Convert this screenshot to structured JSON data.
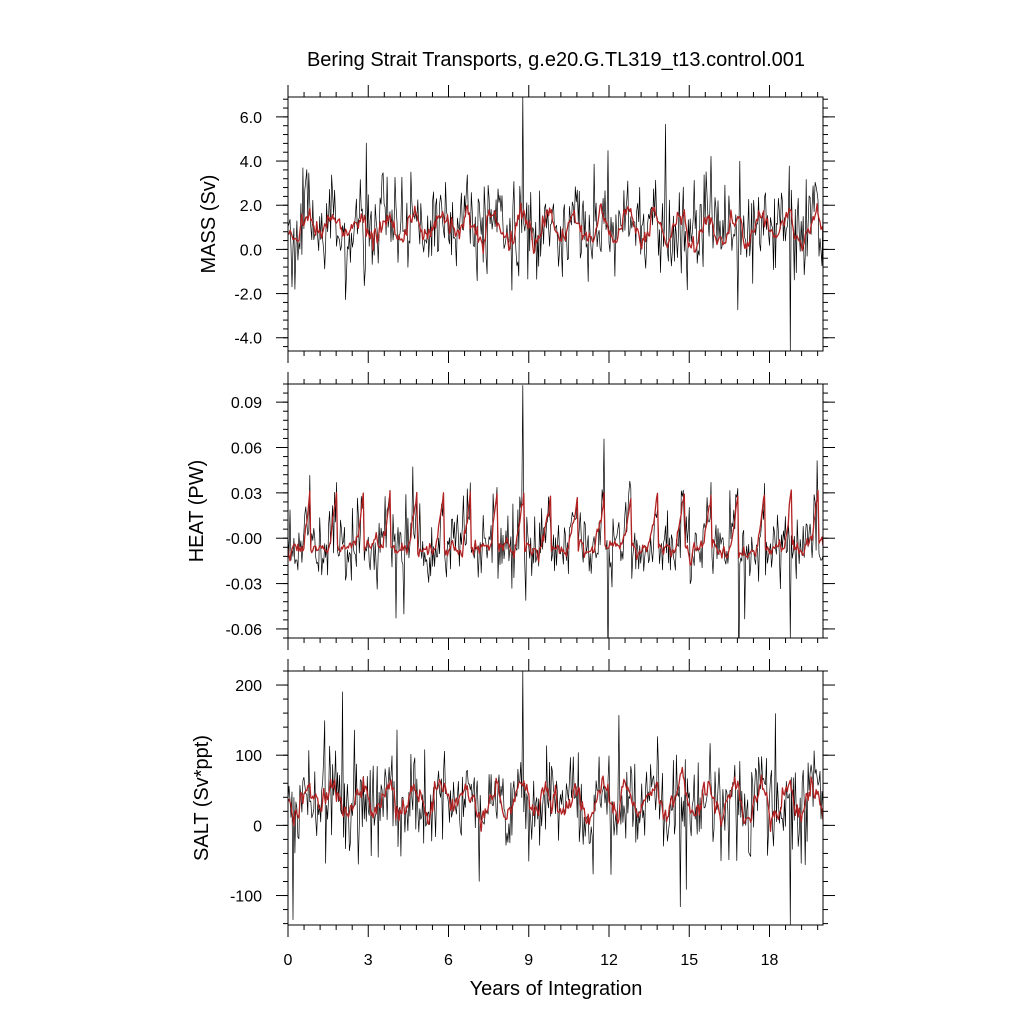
{
  "title": "Bering Strait Transports, g.e20.G.TL319_t13.control.001",
  "chart_data": [
    {
      "type": "line",
      "ylabel": "MASS (Sv)",
      "xlabel": "Years of Integration",
      "xlim": [
        0,
        20
      ],
      "ylim": [
        -4.6,
        6.9
      ],
      "yticks": [
        6.0,
        4.0,
        2.0,
        0.0,
        -2.0,
        -4.0
      ],
      "ytick_labels": [
        "6.0",
        "4.0",
        "2.0",
        "0.0",
        "-2.0",
        "-4.0"
      ],
      "series": [
        {
          "role": "daily",
          "color": "#000000",
          "seasonal_mean": 1.0,
          "seasonal_amplitude": 0.6,
          "noise_std": 1.0,
          "max": 6.9,
          "min": -4.6
        },
        {
          "role": "smoothed",
          "color": "#b22222",
          "seasonal_mean": 1.0,
          "seasonal_amplitude": 0.6,
          "noise_std": 0.35
        }
      ]
    },
    {
      "type": "line",
      "ylabel": "HEAT (PW)",
      "xlabel": "Years of Integration",
      "xlim": [
        0,
        20
      ],
      "ylim": [
        -0.066,
        0.102
      ],
      "yticks": [
        0.09,
        0.06,
        0.03,
        0.0,
        -0.03,
        -0.06
      ],
      "ytick_labels": [
        "0.09",
        "0.06",
        "0.03",
        "-0.00",
        "-0.03",
        "-0.06"
      ],
      "series": [
        {
          "role": "daily",
          "color": "#000000",
          "seasonal_base": -0.007,
          "seasonal_peak": 0.035,
          "noise_std": 0.011,
          "max": 0.101,
          "min": -0.066
        },
        {
          "role": "smoothed",
          "color": "#b22222",
          "seasonal_base": -0.007,
          "seasonal_peak": 0.035,
          "noise_std": 0.004
        }
      ]
    },
    {
      "type": "line",
      "ylabel": "SALT (Sv*ppt)",
      "xlabel": "Years of Integration",
      "xticks": [
        0,
        3,
        6,
        9,
        12,
        15,
        18
      ],
      "xtick_labels": [
        "0",
        "3",
        "6",
        "9",
        "12",
        "15",
        "18"
      ],
      "xlim": [
        0,
        20
      ],
      "ylim": [
        -142,
        220
      ],
      "yticks": [
        200,
        100,
        0,
        -100
      ],
      "ytick_labels": [
        "200",
        "100",
        "0",
        "-100"
      ],
      "series": [
        {
          "role": "daily",
          "color": "#000000",
          "seasonal_mean": 35,
          "seasonal_amplitude": 20,
          "noise_std": 34,
          "max": 220,
          "min": -142
        },
        {
          "role": "smoothed",
          "color": "#b22222",
          "seasonal_mean": 35,
          "seasonal_amplitude": 20,
          "noise_std": 12
        }
      ]
    }
  ]
}
